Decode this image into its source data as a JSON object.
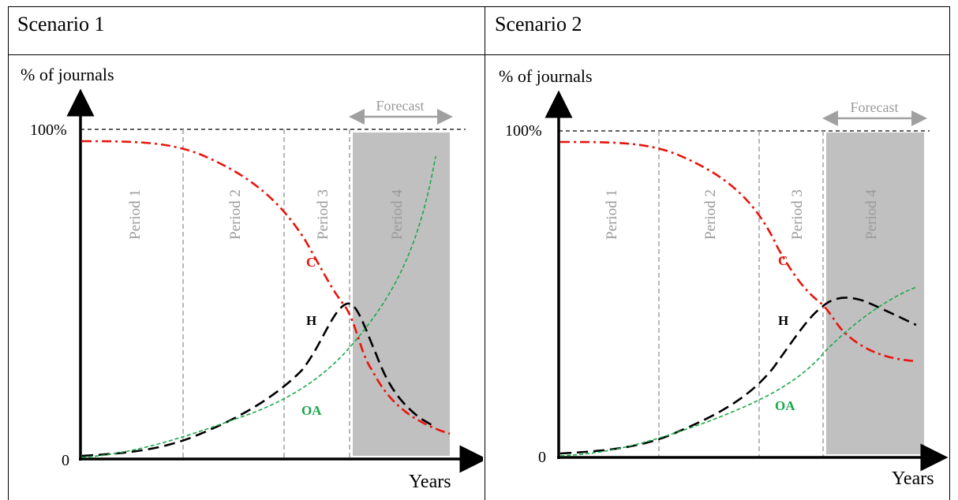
{
  "panels": [
    {
      "title": "Scenario 1",
      "y_axis_label": "% of journals",
      "y_top_tick": "100%",
      "y_zero_tick": "0",
      "x_axis_label": "Years",
      "forecast_label": "Forecast",
      "periods": [
        "Period 1",
        "Period 2",
        "Period 3",
        "Period 4"
      ],
      "series_labels": {
        "C": "C",
        "H": "H",
        "OA": "OA"
      }
    },
    {
      "title": "Scenario 2",
      "y_axis_label": "% of journals",
      "y_top_tick": "100%",
      "y_zero_tick": "0",
      "x_axis_label": "Years",
      "forecast_label": "Forecast",
      "periods": [
        "Period 1",
        "Period 2",
        "Period 3",
        "Period 4"
      ],
      "series_labels": {
        "C": "C",
        "H": "H",
        "OA": "OA"
      }
    }
  ],
  "colors": {
    "C": "#e8140c",
    "H": "#000000",
    "OA": "#1aa84a",
    "forecast_shading": "#c0c0c0",
    "period_divider": "#a6a6a6"
  }
}
